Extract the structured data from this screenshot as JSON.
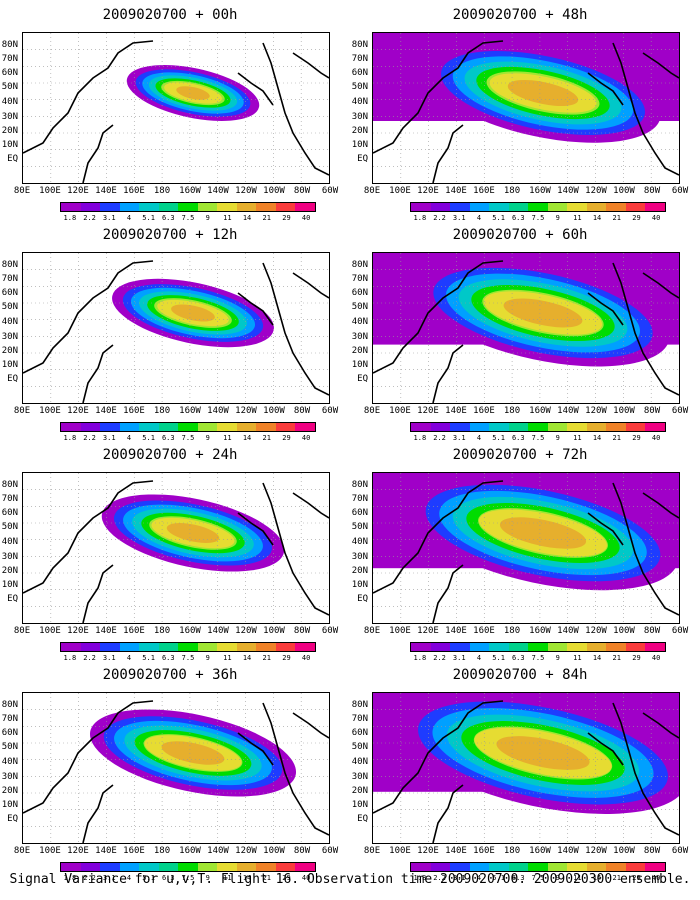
{
  "panels": [
    {
      "title": "2009020700 + 00h",
      "intensity": 0.35,
      "spread": 0.45
    },
    {
      "title": "2009020700 + 12h",
      "intensity": 0.5,
      "spread": 0.55
    },
    {
      "title": "2009020700 + 24h",
      "intensity": 0.6,
      "spread": 0.62
    },
    {
      "title": "2009020700 + 36h",
      "intensity": 0.7,
      "spread": 0.7
    },
    {
      "title": "2009020700 + 48h",
      "intensity": 0.72,
      "spread": 0.8
    },
    {
      "title": "2009020700 + 60h",
      "intensity": 0.78,
      "spread": 0.86
    },
    {
      "title": "2009020700 + 72h",
      "intensity": 0.82,
      "spread": 0.92
    },
    {
      "title": "2009020700 + 84h",
      "intensity": 0.85,
      "spread": 0.98
    }
  ],
  "y_labels": [
    "80N",
    "70N",
    "60N",
    "50N",
    "40N",
    "30N",
    "20N",
    "10N",
    "EQ"
  ],
  "x_labels": [
    "80E",
    "100E",
    "120E",
    "140E",
    "160E",
    "180",
    "160W",
    "140W",
    "120W",
    "100W",
    "80W",
    "60W"
  ],
  "colorbar": {
    "labels": [
      "1.8",
      "2.2",
      "3.1",
      "4",
      "5.1",
      "6.3",
      "7.5",
      "9",
      "11",
      "14",
      "21",
      "29",
      "40"
    ],
    "colors": [
      "#a000c8",
      "#8200dc",
      "#1e3cff",
      "#00a0ff",
      "#00c8c8",
      "#00d28c",
      "#00dc00",
      "#a0e632",
      "#e6dc32",
      "#e6af2d",
      "#f08228",
      "#fa3c3c",
      "#f00082"
    ]
  },
  "caption": "Signal Variance for u,v,T. Flight 16. Observation time 2009020700. 2009020300 ensemble."
}
